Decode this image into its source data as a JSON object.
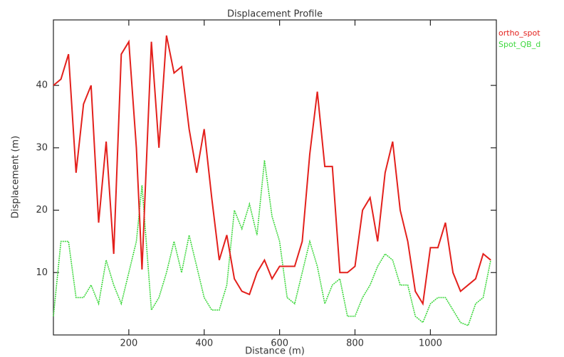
{
  "chart_data": {
    "type": "line",
    "title": "Displacement Profile",
    "x_label": "Distance (m)",
    "y_label": "Displacement (m)",
    "x": [
      0,
      20,
      40,
      60,
      80,
      100,
      120,
      140,
      160,
      180,
      200,
      220,
      235,
      260,
      280,
      300,
      320,
      340,
      360,
      380,
      400,
      420,
      440,
      460,
      480,
      500,
      520,
      540,
      560,
      580,
      600,
      620,
      640,
      660,
      680,
      700,
      720,
      740,
      760,
      780,
      800,
      820,
      840,
      860,
      880,
      900,
      920,
      940,
      960,
      980,
      1000,
      1020,
      1040,
      1060,
      1080,
      1100,
      1120,
      1140,
      1160
    ],
    "series": [
      {
        "name": "ortho_spot",
        "color": "#e3201c",
        "values": [
          40,
          41,
          45,
          26,
          37,
          40,
          18,
          31,
          13,
          45,
          47,
          30,
          10.5,
          47,
          30,
          48,
          42,
          43,
          33,
          26,
          33,
          22,
          12,
          16,
          9,
          7,
          6.5,
          10,
          12,
          9,
          11,
          11,
          11,
          15,
          29,
          39,
          27,
          27,
          10,
          10,
          11,
          20,
          22,
          15,
          26,
          31,
          20,
          15,
          7,
          5,
          14,
          14,
          18,
          10,
          7,
          8,
          9,
          13,
          12
        ]
      },
      {
        "name": "Spot_QB_d",
        "color": "#3fd83f",
        "values": [
          3,
          15,
          15,
          6,
          6,
          8,
          5,
          12,
          8,
          5,
          10,
          15,
          24,
          4,
          6,
          10,
          15,
          10,
          16,
          11,
          6,
          4,
          4,
          8,
          20,
          17,
          21,
          16,
          28,
          19,
          15,
          6,
          5,
          10,
          15,
          11,
          5,
          8,
          9,
          3,
          3,
          6,
          8,
          11,
          13,
          12,
          8,
          8,
          3,
          2,
          5,
          6,
          6,
          4,
          2,
          1.5,
          5,
          6,
          12
        ]
      }
    ],
    "xlim": [
      0,
      1175
    ],
    "ylim": [
      0,
      50.5
    ],
    "xticks": [
      200,
      400,
      600,
      800,
      1000
    ],
    "yticks": [
      10,
      20,
      30,
      40
    ],
    "grid": false,
    "legend": "right"
  }
}
